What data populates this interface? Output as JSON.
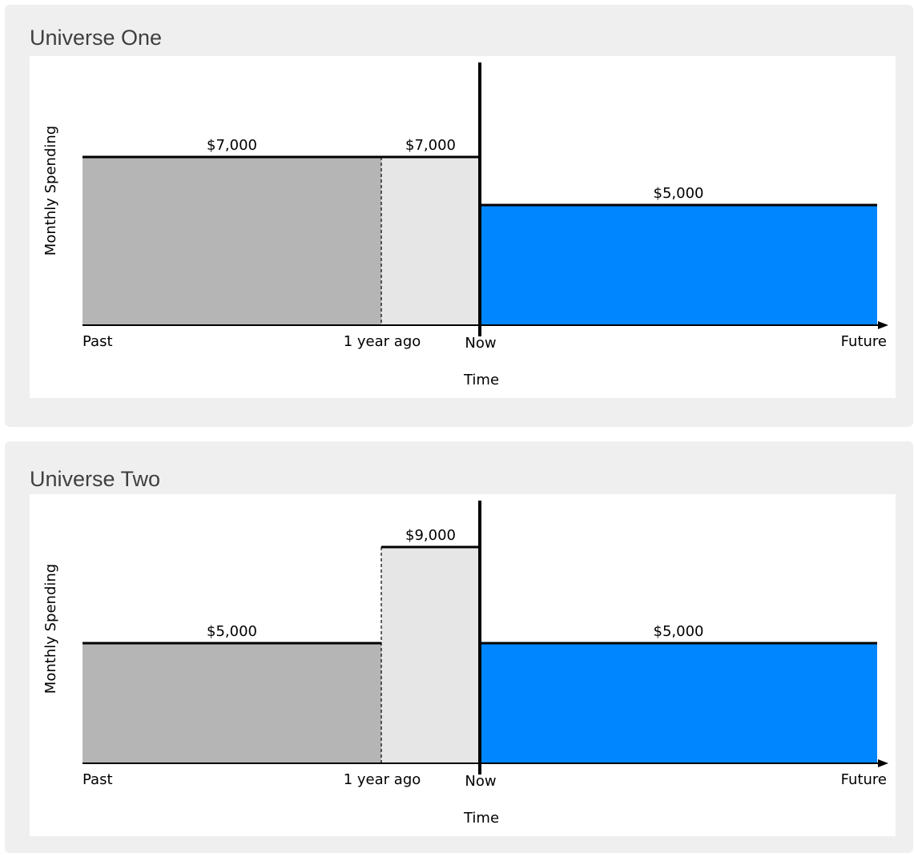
{
  "panels": [
    {
      "title": "Universe One"
    },
    {
      "title": "Universe Two"
    }
  ],
  "colors": {
    "past_fill": "#b5b5b5",
    "recent_fill": "#e6e6e6",
    "future_fill": "#0087ff",
    "line": "#000000",
    "panel_bg": "#efefef",
    "title_text": "#3f3f3f"
  },
  "chart_data": [
    {
      "type": "area",
      "title": "Universe One",
      "xlabel": "Time",
      "ylabel": "Monthly Spending",
      "x_ticks": [
        "Past",
        "1 year ago",
        "Now",
        "Future"
      ],
      "ylim": [
        0,
        10000
      ],
      "segments": [
        {
          "from": "Past",
          "to": "1 year ago",
          "value": 7000,
          "label": "$7,000",
          "fill": "past_fill"
        },
        {
          "from": "1 year ago",
          "to": "Now",
          "value": 7000,
          "label": "$7,000",
          "fill": "recent_fill"
        },
        {
          "from": "Now",
          "to": "Future",
          "value": 5000,
          "label": "$5,000",
          "fill": "future_fill"
        }
      ]
    },
    {
      "type": "area",
      "title": "Universe Two",
      "xlabel": "Time",
      "ylabel": "Monthly Spending",
      "x_ticks": [
        "Past",
        "1 year ago",
        "Now",
        "Future"
      ],
      "ylim": [
        0,
        10000
      ],
      "segments": [
        {
          "from": "Past",
          "to": "1 year ago",
          "value": 5000,
          "label": "$5,000",
          "fill": "past_fill"
        },
        {
          "from": "1 year ago",
          "to": "Now",
          "value": 9000,
          "label": "$9,000",
          "fill": "recent_fill"
        },
        {
          "from": "Now",
          "to": "Future",
          "value": 5000,
          "label": "$5,000",
          "fill": "future_fill"
        }
      ]
    }
  ]
}
